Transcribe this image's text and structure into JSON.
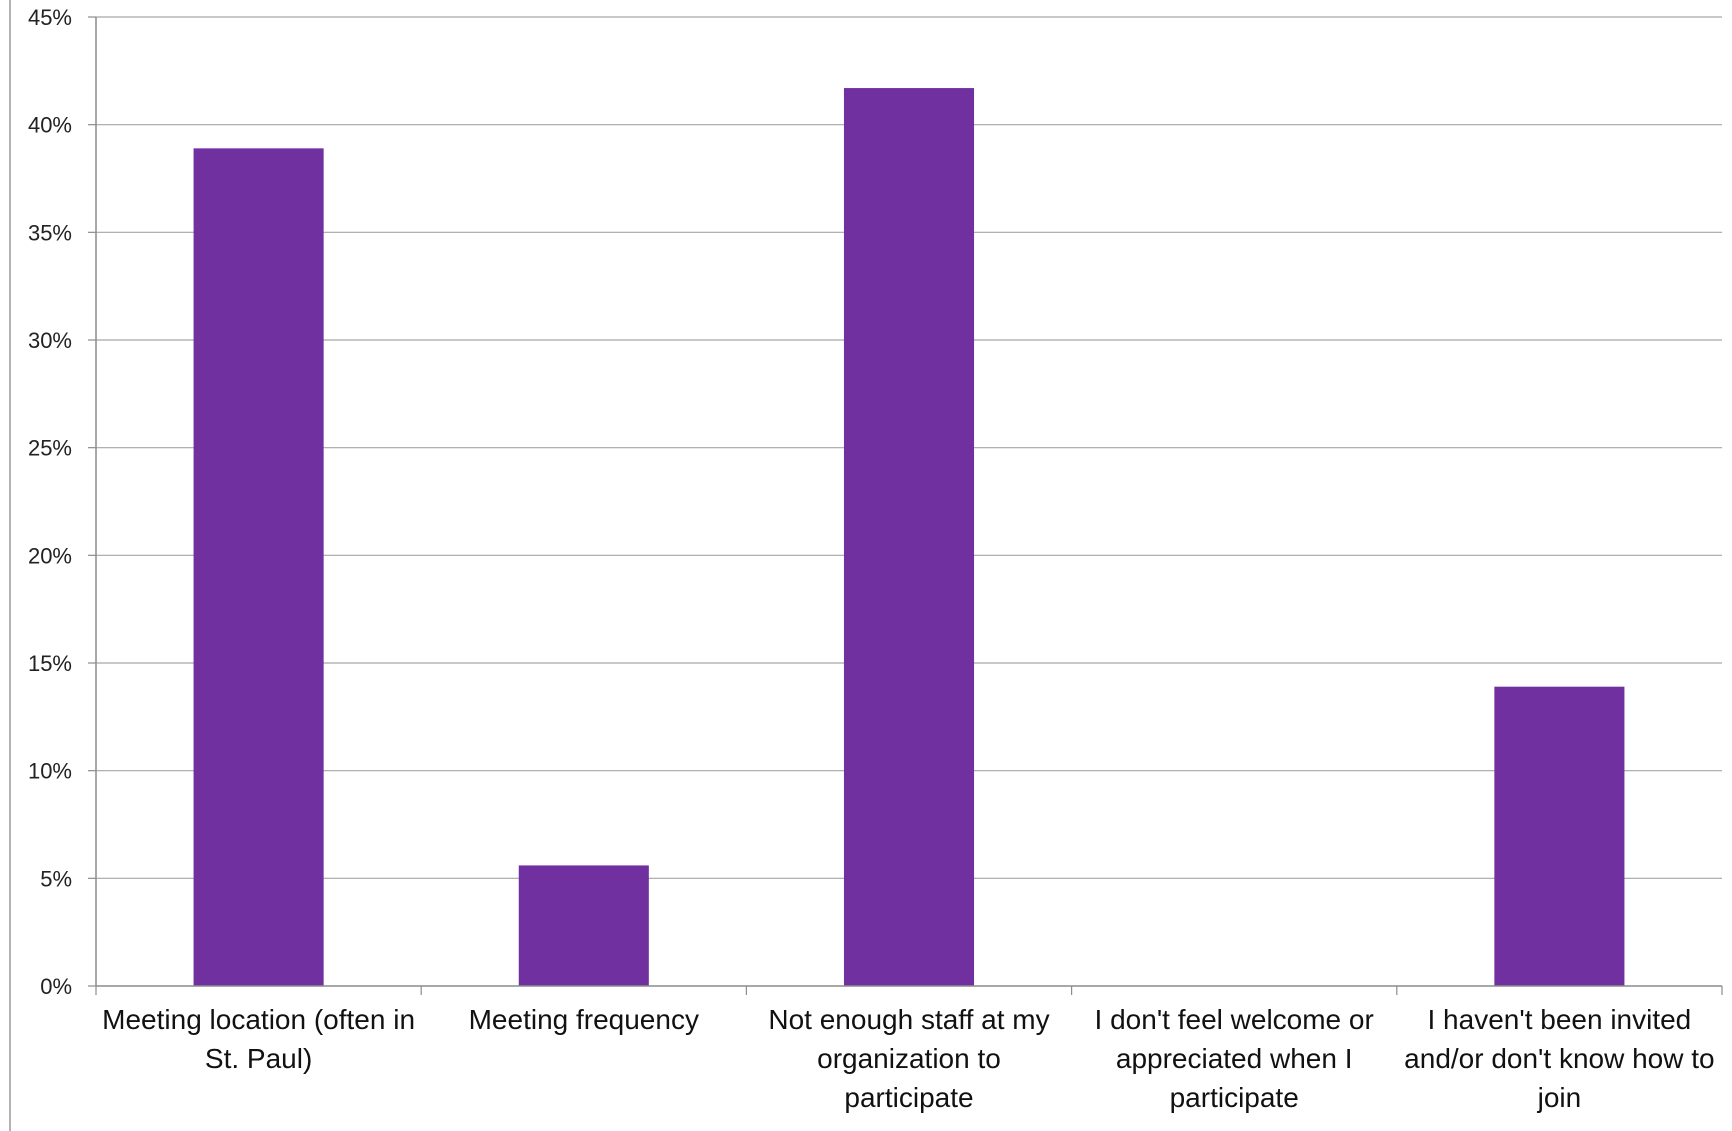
{
  "chart_data": {
    "type": "bar",
    "title": "",
    "xlabel": "",
    "ylabel": "",
    "ylim": [
      0,
      45
    ],
    "yticks": [
      "0%",
      "5%",
      "10%",
      "15%",
      "20%",
      "25%",
      "30%",
      "35%",
      "40%",
      "45%"
    ],
    "categories": [
      "Meeting location (often in St. Paul)",
      "Meeting frequency",
      "Not enough staff at my organization to participate",
      "I don't feel welcome or appreciated when I participate",
      "I haven't been invited and/or don't know how to join"
    ],
    "values": [
      38.9,
      5.6,
      41.7,
      0,
      13.9
    ],
    "value_unit": "%",
    "bar_color": "#7030A0",
    "gridlines": true,
    "legend": "none"
  }
}
